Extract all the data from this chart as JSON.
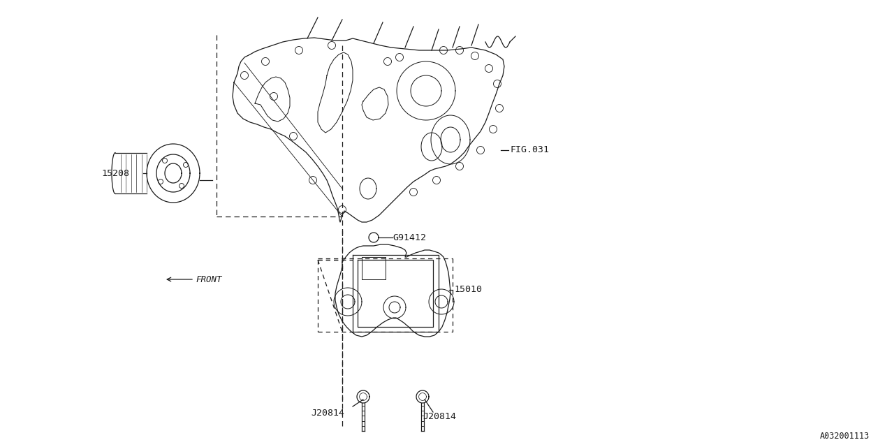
{
  "bg_color": "#ffffff",
  "line_color": "#1a1a1a",
  "fig_width": 12.8,
  "fig_height": 6.4,
  "watermark": "A032001113",
  "label_15208": "15208",
  "label_fig031": "FIG.031",
  "label_g91412": "G91412",
  "label_15010": "15010",
  "label_j20814": "J20814",
  "label_front": "FRONT"
}
